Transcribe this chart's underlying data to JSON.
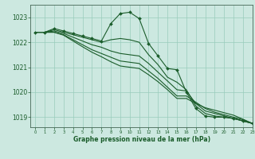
{
  "title": "Graphe pression niveau de la mer (hPa)",
  "bg_color": "#cce8e0",
  "grid_color": "#99ccbb",
  "line_color": "#1a5c2a",
  "xlim": [
    -0.5,
    23
  ],
  "ylim": [
    1018.6,
    1023.5
  ],
  "yticks": [
    1019,
    1020,
    1021,
    1022,
    1023
  ],
  "xticks": [
    0,
    1,
    2,
    3,
    4,
    5,
    6,
    7,
    8,
    9,
    10,
    11,
    12,
    13,
    14,
    15,
    16,
    17,
    18,
    19,
    20,
    21,
    22,
    23
  ],
  "series": [
    {
      "x": [
        0,
        1,
        2,
        3,
        4,
        5,
        6,
        7,
        8,
        9,
        10,
        11,
        12,
        13,
        14,
        15,
        16,
        17,
        18,
        19,
        20,
        21,
        22,
        23
      ],
      "y": [
        1022.4,
        1022.4,
        1022.55,
        1022.45,
        1022.35,
        1022.25,
        1022.15,
        1022.05,
        1022.75,
        1023.15,
        1023.2,
        1022.95,
        1021.95,
        1021.45,
        1020.95,
        1020.9,
        1020.0,
        1019.35,
        1019.05,
        1019.0,
        1019.0,
        1018.95,
        1018.85,
        1018.75
      ],
      "marker": true
    },
    {
      "x": [
        0,
        1,
        2,
        3,
        4,
        5,
        6,
        7,
        8,
        9,
        10,
        11,
        12,
        13,
        14,
        15,
        16,
        17,
        18,
        19,
        20,
        21,
        22,
        23
      ],
      "y": [
        1022.4,
        1022.4,
        1022.5,
        1022.4,
        1022.3,
        1022.2,
        1022.1,
        1022.0,
        1022.1,
        1022.15,
        1022.1,
        1022.0,
        1021.5,
        1021.1,
        1020.6,
        1020.4,
        1020.1,
        1019.45,
        1019.15,
        1019.05,
        1019.0,
        1018.95,
        1018.85,
        1018.75
      ],
      "marker": false
    },
    {
      "x": [
        0,
        1,
        2,
        3,
        4,
        5,
        6,
        7,
        8,
        9,
        10,
        11,
        12,
        13,
        14,
        15,
        16,
        17,
        18,
        19,
        20,
        21,
        22,
        23
      ],
      "y": [
        1022.4,
        1022.4,
        1022.45,
        1022.35,
        1022.2,
        1022.05,
        1021.9,
        1021.8,
        1021.65,
        1021.55,
        1021.5,
        1021.45,
        1021.15,
        1020.8,
        1020.45,
        1020.1,
        1020.05,
        1019.55,
        1019.25,
        1019.15,
        1019.05,
        1018.95,
        1018.85,
        1018.75
      ],
      "marker": false
    },
    {
      "x": [
        0,
        1,
        2,
        3,
        4,
        5,
        6,
        7,
        8,
        9,
        10,
        11,
        12,
        13,
        14,
        15,
        16,
        17,
        18,
        19,
        20,
        21,
        22,
        23
      ],
      "y": [
        1022.4,
        1022.4,
        1022.4,
        1022.3,
        1022.1,
        1021.9,
        1021.7,
        1021.55,
        1021.4,
        1021.25,
        1021.2,
        1021.15,
        1020.85,
        1020.55,
        1020.2,
        1019.85,
        1019.85,
        1019.6,
        1019.35,
        1019.2,
        1019.1,
        1019.0,
        1018.9,
        1018.75
      ],
      "marker": false
    },
    {
      "x": [
        0,
        1,
        2,
        3,
        4,
        5,
        6,
        7,
        8,
        9,
        10,
        11,
        12,
        13,
        14,
        15,
        16,
        17,
        18,
        19,
        20,
        21,
        22,
        23
      ],
      "y": [
        1022.4,
        1022.4,
        1022.4,
        1022.28,
        1022.05,
        1021.82,
        1021.6,
        1021.42,
        1021.22,
        1021.05,
        1021.0,
        1020.95,
        1020.7,
        1020.42,
        1020.1,
        1019.75,
        1019.75,
        1019.55,
        1019.38,
        1019.28,
        1019.18,
        1019.08,
        1018.92,
        1018.75
      ],
      "marker": false
    }
  ]
}
